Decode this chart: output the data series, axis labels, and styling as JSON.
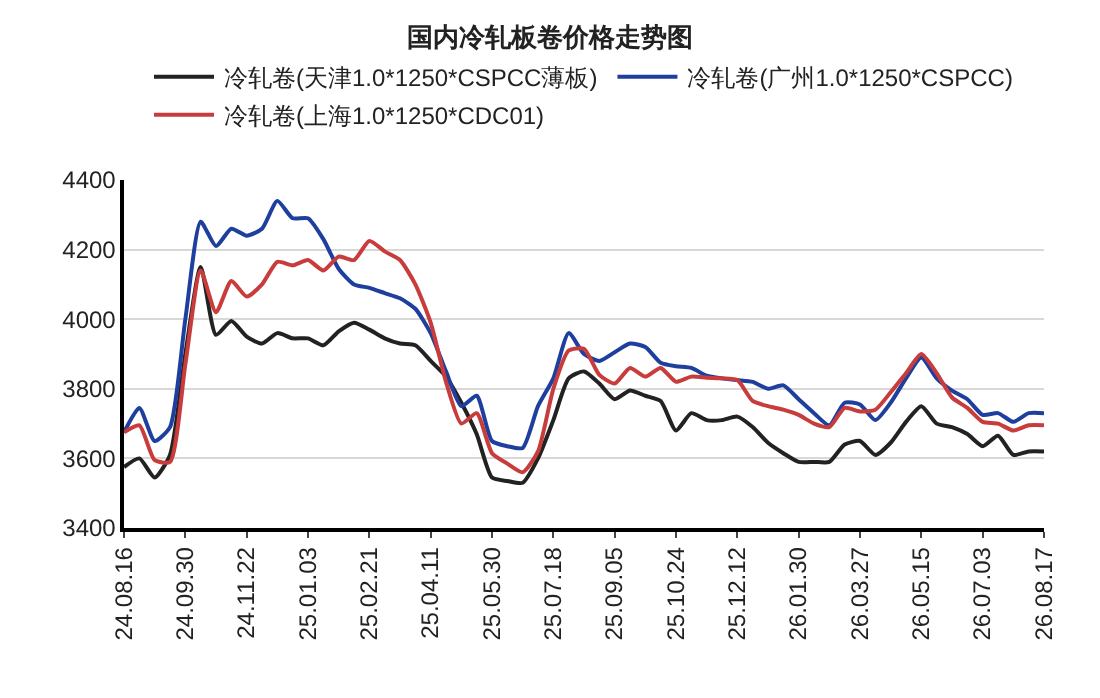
{
  "chart_data": {
    "type": "line",
    "title": "国内冷轧板卷价格走势图",
    "categories": [
      "24.08.16",
      null,
      null,
      null,
      "24.09.30",
      null,
      null,
      null,
      "24.11.22",
      null,
      null,
      null,
      "25.01.03",
      null,
      null,
      null,
      "25.02.21",
      null,
      null,
      null,
      "25.04.11",
      null,
      null,
      null,
      "25.05.30",
      null,
      null,
      null,
      "25.07.18",
      null,
      null,
      null,
      "25.09.05",
      null,
      null,
      null,
      "25.10.24",
      null,
      null,
      null,
      "25.12.12",
      null,
      null,
      null,
      "26.01.30",
      null,
      null,
      null,
      "26.03.27",
      null,
      null,
      null,
      "26.05.15",
      null,
      null,
      null,
      "26.07.03",
      null,
      null,
      null,
      "26.08.17"
    ],
    "series": [
      {
        "name": "冷轧卷(天津1.0*1250*CSPCC薄板)",
        "color": "#222222",
        "values": [
          3575,
          3600,
          3545,
          3610,
          3900,
          4150,
          3955,
          3995,
          3950,
          3930,
          3960,
          3945,
          3945,
          3925,
          3965,
          3990,
          3970,
          3945,
          3930,
          3925,
          3880,
          3835,
          3760,
          3670,
          3545,
          3535,
          3530,
          3600,
          3710,
          3830,
          3850,
          3815,
          3770,
          3795,
          3780,
          3765,
          3680,
          3730,
          3710,
          3710,
          3720,
          3690,
          3645,
          3615,
          3590,
          3590,
          3590,
          3640,
          3650,
          3610,
          3645,
          3705,
          3750,
          3700,
          3690,
          3670,
          3635,
          3665,
          3610,
          3620,
          3620
        ]
      },
      {
        "name": "冷轧卷(广州1.0*1250*CSPCC)",
        "color": "#1f3f9f",
        "values": [
          3675,
          3745,
          3650,
          3690,
          4000,
          4280,
          4210,
          4260,
          4240,
          4260,
          4340,
          4290,
          4290,
          4230,
          4145,
          4100,
          4090,
          4075,
          4060,
          4030,
          3960,
          3850,
          3750,
          3780,
          3650,
          3635,
          3630,
          3750,
          3830,
          3960,
          3900,
          3880,
          3905,
          3930,
          3920,
          3875,
          3865,
          3860,
          3838,
          3830,
          3825,
          3820,
          3800,
          3810,
          3770,
          3730,
          3695,
          3760,
          3755,
          3710,
          3760,
          3830,
          3890,
          3830,
          3795,
          3770,
          3725,
          3730,
          3705,
          3730,
          3730
        ]
      },
      {
        "name": "冷轧卷(上海1.0*1250*CDC01)",
        "color": "#c83c3c",
        "values": [
          3675,
          3695,
          3595,
          3590,
          3870,
          4140,
          4020,
          4110,
          4065,
          4100,
          4165,
          4155,
          4170,
          4140,
          4180,
          4170,
          4225,
          4195,
          4170,
          4100,
          3990,
          3820,
          3700,
          3730,
          3615,
          3585,
          3560,
          3620,
          3800,
          3910,
          3915,
          3840,
          3815,
          3860,
          3835,
          3860,
          3820,
          3835,
          3832,
          3830,
          3825,
          3765,
          3750,
          3740,
          3725,
          3700,
          3690,
          3745,
          3735,
          3740,
          3790,
          3845,
          3900,
          3845,
          3775,
          3745,
          3705,
          3700,
          3680,
          3695,
          3695
        ]
      }
    ],
    "ylim": [
      3400,
      4400
    ],
    "yticks": [
      3400,
      3600,
      3800,
      4000,
      4200,
      4400
    ],
    "grid": "y",
    "legend": "top"
  }
}
